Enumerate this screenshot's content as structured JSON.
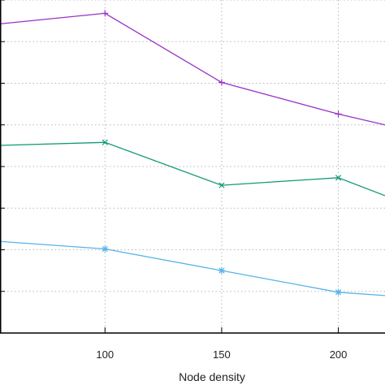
{
  "chart_data": {
    "type": "line",
    "xlabel": "Node density",
    "ylabel": "",
    "title": "",
    "xlim": [
      55,
      220
    ],
    "ylim": [
      0,
      8
    ],
    "x_ticks": [
      100,
      150,
      200
    ],
    "y_grid_values": [
      1,
      2,
      3,
      4,
      5,
      6,
      7,
      8
    ],
    "grid": true,
    "series": [
      {
        "color": "#9b30c9",
        "marker": "plus",
        "points": [
          [
            50,
            7.4
          ],
          [
            100,
            7.68
          ],
          [
            150,
            6.02
          ],
          [
            200,
            5.26
          ],
          [
            220,
            5.0
          ]
        ]
      },
      {
        "color": "#119977",
        "marker": "cross",
        "points": [
          [
            50,
            4.5
          ],
          [
            100,
            4.58
          ],
          [
            150,
            3.55
          ],
          [
            200,
            3.73
          ],
          [
            220,
            3.3
          ]
        ]
      },
      {
        "color": "#56b4e9",
        "marker": "star",
        "points": [
          [
            50,
            2.22
          ],
          [
            100,
            2.02
          ],
          [
            150,
            1.5
          ],
          [
            200,
            0.98
          ],
          [
            220,
            0.9
          ]
        ]
      }
    ]
  }
}
